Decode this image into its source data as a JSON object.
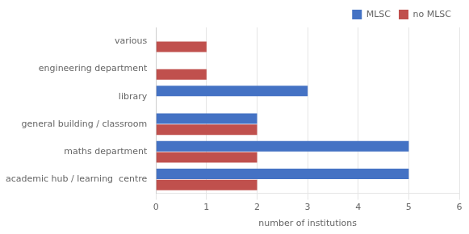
{
  "chart_data": {
    "type": "bar",
    "orientation": "horizontal",
    "categories": [
      "various",
      "engineering department",
      "library",
      "general building / classroom",
      "maths department",
      "academic hub / learning  centre"
    ],
    "series": [
      {
        "name": "MLSC",
        "color": "#4472C4",
        "values": [
          0,
          0,
          3,
          2,
          5,
          5
        ]
      },
      {
        "name": "no MLSC",
        "color": "#C0504D",
        "values": [
          1,
          1,
          0,
          2,
          2,
          2
        ]
      }
    ],
    "xlabel": "number of institutions",
    "xlim": [
      0,
      6
    ],
    "xticks": [
      0,
      1,
      2,
      3,
      4,
      5,
      6
    ],
    "grid": true,
    "legend": "upper right"
  }
}
